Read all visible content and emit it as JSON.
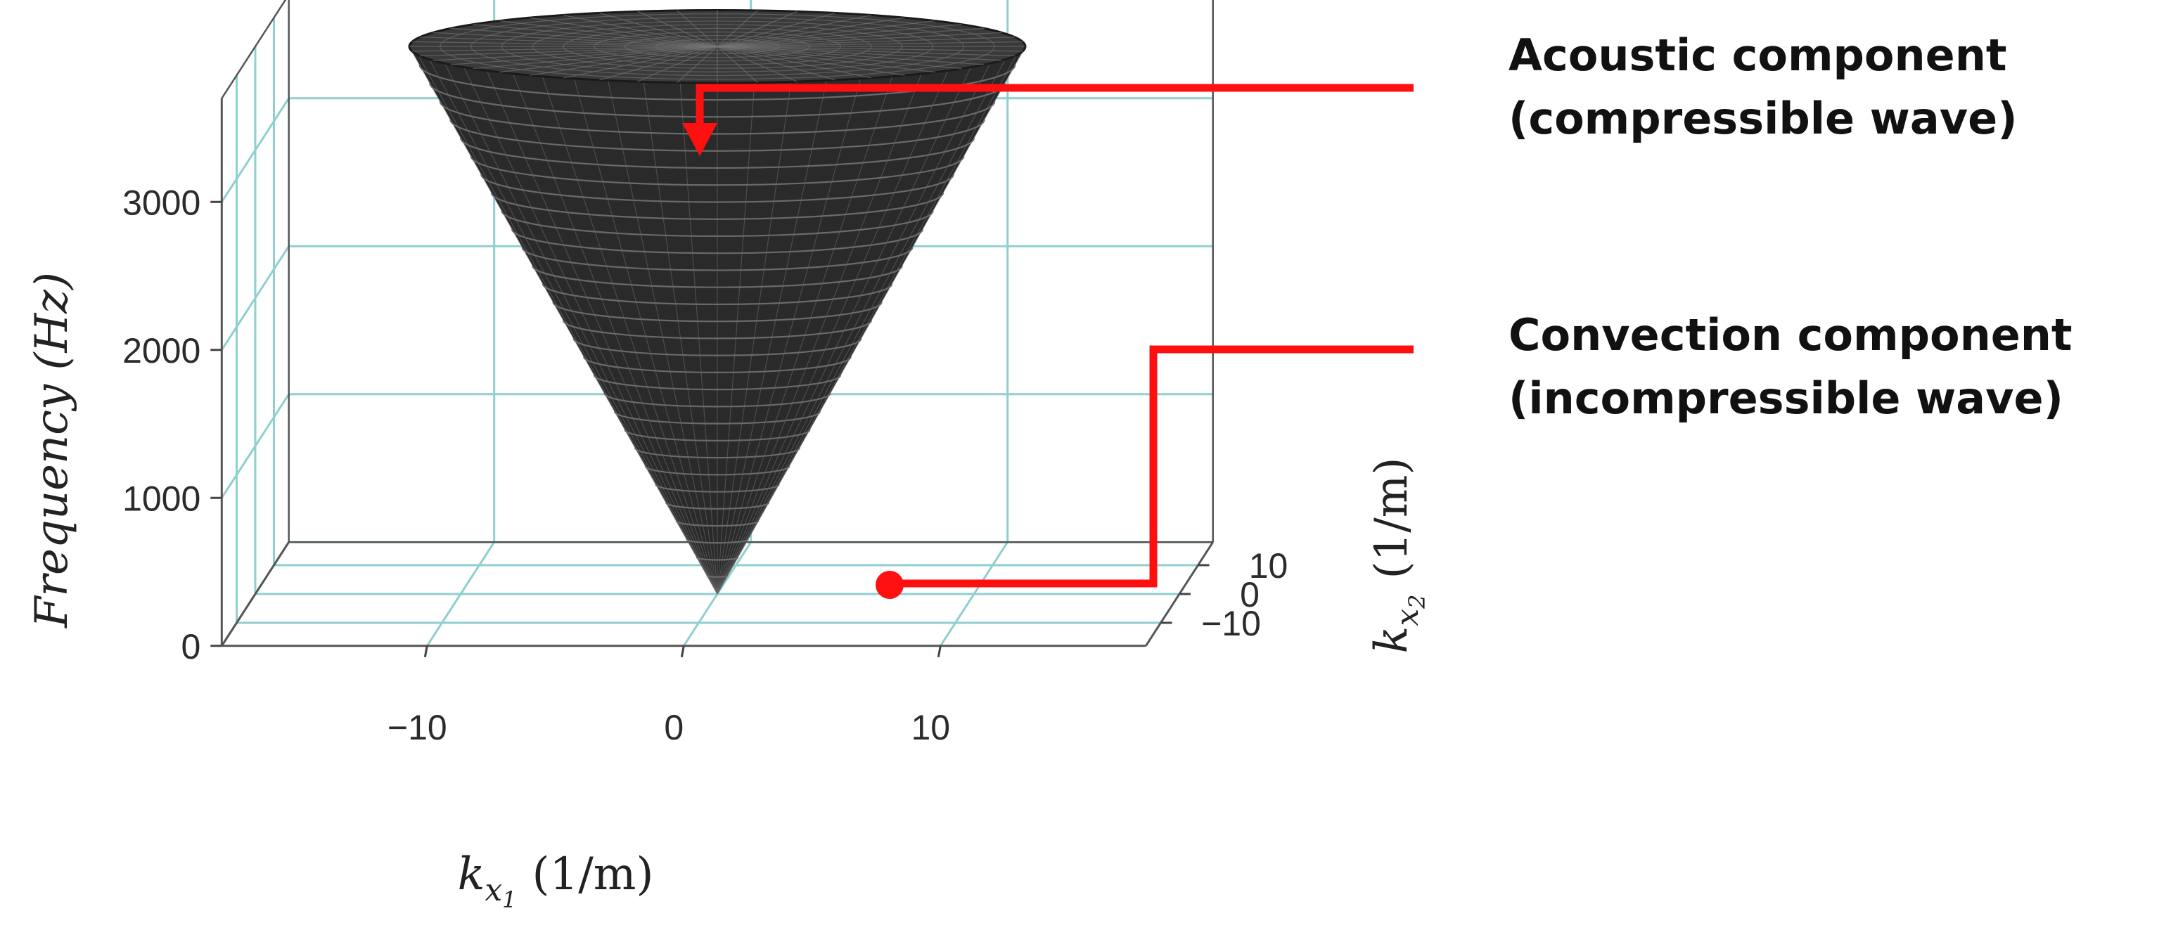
{
  "chart_data": {
    "type": "surface3d",
    "title": "",
    "shape": "cone",
    "cone": {
      "apex": {
        "kx1": 0,
        "kx2": 0,
        "frequency": 0
      },
      "top_frequency": 3700,
      "top_radius": 12
    },
    "axes": {
      "x": {
        "label_main": "k",
        "label_sub1": "x",
        "label_sub2": "1",
        "units": "(1/m)",
        "ticks": [
          -10,
          0,
          10
        ],
        "tick_labels": [
          "−10",
          "0",
          "10"
        ],
        "range": [
          -18,
          18
        ]
      },
      "y": {
        "label_main": "k",
        "label_sub1": "x",
        "label_sub2": "2",
        "units": "(1/m)",
        "ticks": [
          -10,
          0,
          10
        ],
        "tick_labels": [
          "−10",
          "0",
          "10"
        ],
        "range": [
          -18,
          18
        ]
      },
      "z": {
        "label": "Frequency (Hz)",
        "ticks": [
          0,
          1000,
          2000,
          3000
        ],
        "tick_labels": [
          "0",
          "1000",
          "2000",
          "3000"
        ],
        "range": [
          0,
          3700
        ]
      }
    },
    "grid": true,
    "colors": {
      "surface": "#2a2a2a",
      "mesh": "#6a6a6a",
      "grid": "#8fcfcf",
      "annotation": "#ff1010"
    },
    "annotations": [
      {
        "id": "acoustic",
        "line1": "Acoustic component",
        "line2": "(compressible wave)",
        "marker": "arrow",
        "target": "cone top surface"
      },
      {
        "id": "convection",
        "line1": "Convection component",
        "line2": "(incompressible wave)",
        "marker": "dot",
        "target": "kx1 ≈ 7, kx2 ≈ 0, frequency ≈ 0"
      }
    ]
  }
}
